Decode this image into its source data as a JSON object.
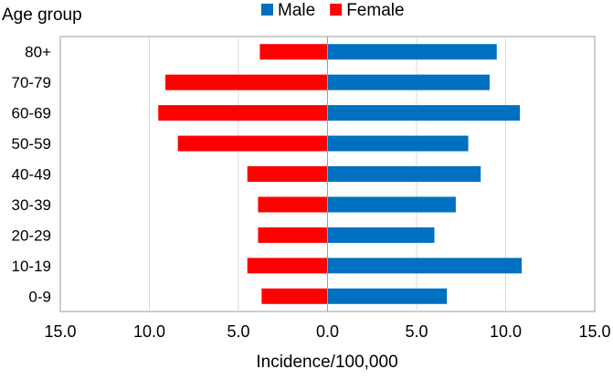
{
  "chart_data": {
    "type": "bar",
    "orientation": "horizontal",
    "layout": "population-pyramid",
    "title": "",
    "categories": [
      "80+",
      "70-79",
      "60-69",
      "50-59",
      "40-49",
      "30-39",
      "20-29",
      "10-19",
      "0-9"
    ],
    "series": [
      {
        "name": "Male",
        "color": "#0070C0",
        "side": "right",
        "values": [
          9.5,
          9.1,
          10.8,
          7.9,
          8.6,
          7.2,
          6.0,
          10.9,
          6.7
        ]
      },
      {
        "name": "Female",
        "color": "#FF0000",
        "side": "left",
        "values": [
          3.8,
          9.1,
          9.5,
          8.4,
          4.5,
          3.9,
          3.9,
          4.5,
          3.7
        ]
      }
    ],
    "xlabel": "Incidence/100,000",
    "ylabel": "Age group",
    "xlim": [
      -15,
      15
    ],
    "xticks": [
      "15.0",
      "10.0",
      "5.0",
      "0.0",
      "5.0",
      "10.0",
      "15.0"
    ],
    "grid": "vertical",
    "legend": "top"
  }
}
